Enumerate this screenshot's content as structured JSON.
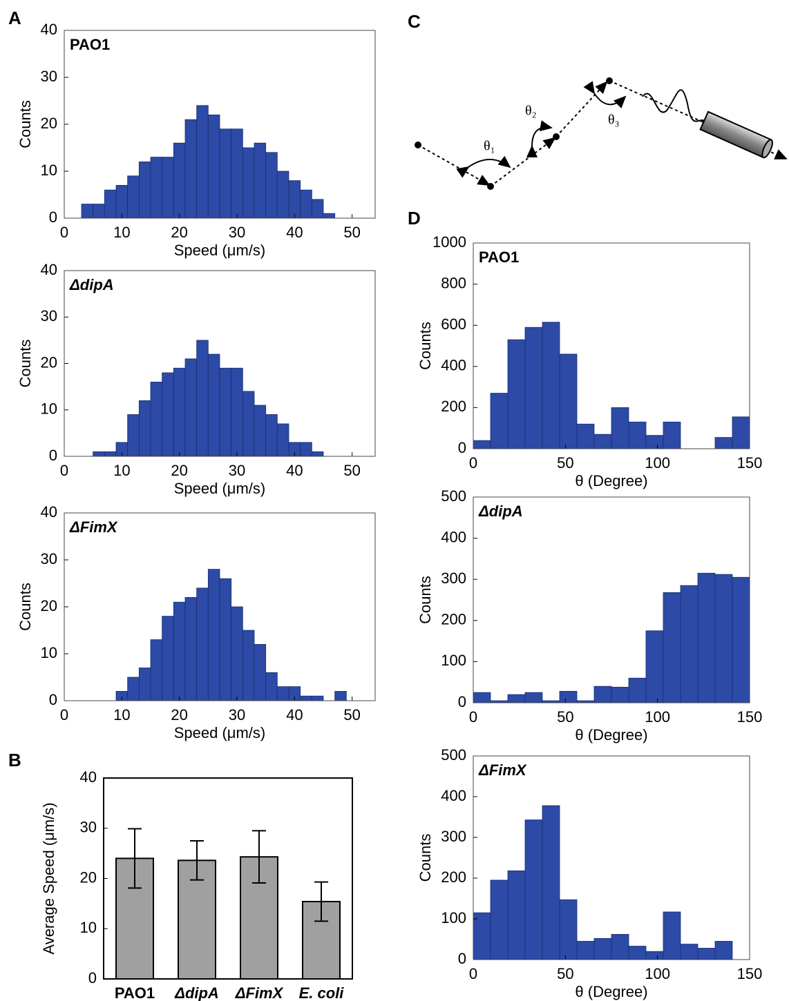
{
  "panels": [
    "A",
    "B",
    "C",
    "D"
  ],
  "diagram": {
    "labels": [
      "θ₁",
      "θ₂",
      "θ₃"
    ]
  },
  "chart_data": [
    {
      "type": "histogram",
      "title": "PAO1",
      "x_label": "Speed (μm/s)",
      "y_label": "Counts",
      "color": "#2c4aa6",
      "bins": [
        3,
        5,
        7,
        9,
        11,
        13,
        15,
        17,
        19,
        21,
        23,
        25,
        27,
        29,
        31,
        33,
        35,
        37,
        39,
        41,
        43,
        45,
        47
      ],
      "values": [
        3,
        3,
        6,
        7,
        9,
        12,
        13,
        13,
        16,
        21,
        24,
        22,
        19,
        19,
        15,
        16,
        14,
        10,
        8,
        6,
        4,
        1
      ],
      "xlim": [
        0,
        54
      ],
      "ylim": [
        0,
        40
      ],
      "xticks": [
        0,
        10,
        20,
        30,
        40,
        50
      ],
      "yticks": [
        0,
        10,
        20,
        30,
        40
      ]
    },
    {
      "type": "histogram",
      "title": "ΔdipA",
      "x_label": "Speed (μm/s)",
      "y_label": "Counts",
      "color": "#2c4aa6",
      "bins": [
        5,
        7,
        9,
        11,
        13,
        15,
        17,
        19,
        21,
        23,
        25,
        27,
        29,
        31,
        33,
        35,
        37,
        39,
        41,
        43,
        45
      ],
      "values": [
        1,
        1,
        3,
        9,
        12,
        16,
        18,
        19,
        21,
        25,
        22,
        19,
        19,
        14,
        11,
        9,
        7,
        3,
        3,
        1
      ],
      "xlim": [
        0,
        54
      ],
      "ylim": [
        0,
        40
      ],
      "xticks": [
        0,
        10,
        20,
        30,
        40,
        50
      ],
      "yticks": [
        0,
        10,
        20,
        30,
        40
      ]
    },
    {
      "type": "histogram",
      "title": "ΔFimX",
      "x_label": "Speed (μm/s)",
      "y_label": "Counts",
      "color": "#2c4aa6",
      "bins": [
        9,
        11,
        13,
        15,
        17,
        19,
        21,
        23,
        25,
        27,
        29,
        31,
        33,
        35,
        37,
        39,
        41,
        43,
        45,
        47,
        49
      ],
      "values": [
        2,
        5,
        7,
        13,
        18,
        21,
        22,
        24,
        28,
        26,
        20,
        15,
        12,
        6,
        3,
        3,
        1,
        1,
        0,
        2
      ],
      "xlim": [
        0,
        54
      ],
      "ylim": [
        0,
        40
      ],
      "xticks": [
        0,
        10,
        20,
        30,
        40,
        50
      ],
      "yticks": [
        0,
        10,
        20,
        30,
        40
      ]
    },
    {
      "type": "errorbar",
      "y_label": "Average Speed (μm/s)",
      "color": "#a0a0a0",
      "categories": [
        "PAO1",
        "ΔdipA",
        "ΔFimX",
        "E. coli"
      ],
      "values": [
        24,
        23.6,
        24.3,
        15.4
      ],
      "errors": [
        5.9,
        3.9,
        5.2,
        3.9
      ],
      "ylim": [
        0,
        40
      ],
      "yticks": [
        0,
        10,
        20,
        30,
        40
      ]
    },
    {
      "type": "histogram",
      "title": "PAO1",
      "x_label": "θ (Degree)",
      "y_label": "Counts",
      "color": "#2c4aa6",
      "bins": [
        0,
        9.375,
        18.75,
        28.125,
        37.5,
        46.875,
        56.25,
        65.625,
        75,
        84.375,
        93.75,
        103.125,
        112.5,
        121.875,
        131.25,
        140.625,
        150
      ],
      "values": [
        40,
        270,
        530,
        590,
        615,
        460,
        120,
        70,
        200,
        130,
        65,
        130,
        0,
        0,
        55,
        155
      ],
      "xlim": [
        0,
        150
      ],
      "ylim": [
        0,
        1000
      ],
      "xticks": [
        0,
        50,
        100,
        150
      ],
      "yticks": [
        0,
        200,
        400,
        600,
        800,
        1000
      ]
    },
    {
      "type": "histogram",
      "title": "ΔdipA",
      "x_label": "θ (Degree)",
      "y_label": "Counts",
      "color": "#2c4aa6",
      "bins": [
        0,
        9.375,
        18.75,
        28.125,
        37.5,
        46.875,
        56.25,
        65.625,
        75,
        84.375,
        93.75,
        103.125,
        112.5,
        121.875,
        131.25,
        140.625,
        150
      ],
      "values": [
        25,
        5,
        20,
        25,
        5,
        28,
        5,
        40,
        38,
        60,
        175,
        268,
        285,
        315,
        312,
        305
      ],
      "xlim": [
        0,
        150
      ],
      "ylim": [
        0,
        500
      ],
      "xticks": [
        0,
        50,
        100,
        150
      ],
      "yticks": [
        0,
        100,
        200,
        300,
        400,
        500
      ]
    },
    {
      "type": "histogram",
      "title": "ΔFimX",
      "x_label": "θ (Degree)",
      "y_label": "Counts",
      "color": "#2c4aa6",
      "bins": [
        0,
        9.375,
        18.75,
        28.125,
        37.5,
        46.875,
        56.25,
        65.625,
        75,
        84.375,
        93.75,
        103.125,
        112.5,
        121.875,
        131.25,
        140.625,
        150
      ],
      "values": [
        115,
        195,
        218,
        343,
        378,
        147,
        45,
        52,
        62,
        33,
        20,
        117,
        38,
        28,
        45,
        0
      ],
      "xlim": [
        0,
        150
      ],
      "ylim": [
        0,
        500
      ],
      "xticks": [
        0,
        50,
        100,
        150
      ],
      "yticks": [
        0,
        100,
        200,
        300,
        400,
        500
      ]
    }
  ]
}
